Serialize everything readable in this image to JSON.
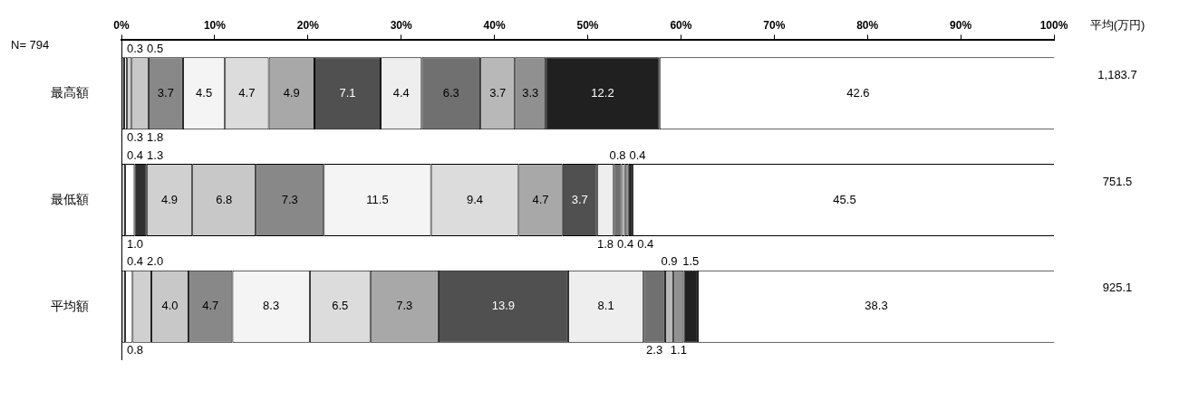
{
  "chart_data": {
    "type": "bar",
    "orientation": "horizontal",
    "stacked": true,
    "legend": false,
    "grid": false,
    "categories": [
      "最高額",
      "最低額",
      "平均額"
    ],
    "xlim": [
      0,
      100
    ],
    "xticks": [
      {
        "value": 0,
        "label": "0%"
      },
      {
        "value": 10,
        "label": "10%"
      },
      {
        "value": 20,
        "label": "20%"
      },
      {
        "value": 30,
        "label": "30%"
      },
      {
        "value": 40,
        "label": "40%"
      },
      {
        "value": 50,
        "label": "50%"
      },
      {
        "value": 60,
        "label": "60%"
      },
      {
        "value": 70,
        "label": "70%"
      },
      {
        "value": 80,
        "label": "80%"
      },
      {
        "value": 90,
        "label": "90%"
      },
      {
        "value": 100,
        "label": "100%"
      }
    ],
    "annotations": [
      "N= 794",
      "平均(万円)",
      "1,183.7",
      "751.5",
      "925.1"
    ],
    "series": [
      {
        "color": "#e8e8e8",
        "values": [
          0.3,
          0.4,
          0.4
        ],
        "value_labels": [
          "0.3",
          "0.4",
          "0.4"
        ]
      },
      {
        "color": "#ffffff",
        "values": [
          0.3,
          1.0,
          0.8
        ],
        "value_labels": [
          "0.3",
          "1.0",
          "0.8"
        ]
      },
      {
        "color": "#303030",
        "values": [
          null,
          1.3,
          null
        ],
        "value_labels": [
          null,
          "1.3",
          null
        ]
      },
      {
        "color": "#d0d0d0",
        "values": [
          0.5,
          4.9,
          2.0
        ],
        "value_labels": [
          "0.5",
          "4.9",
          "2.0"
        ]
      },
      {
        "color": "#c8c8c8",
        "values": [
          1.8,
          6.8,
          4.0
        ],
        "value_labels": [
          "1.8",
          "6.8",
          "4.0"
        ]
      },
      {
        "color": "#888888",
        "values": [
          3.7,
          7.3,
          4.7
        ],
        "value_labels": [
          "3.7",
          "7.3",
          "4.7"
        ]
      },
      {
        "color": "#f4f4f4",
        "values": [
          4.5,
          11.5,
          8.3
        ],
        "value_labels": [
          "4.5",
          "11.5",
          "8.3"
        ]
      },
      {
        "color": "#dcdcdc",
        "values": [
          4.7,
          9.4,
          6.5
        ],
        "value_labels": [
          "4.7",
          "9.4",
          "6.5"
        ]
      },
      {
        "color": "#a8a8a8",
        "values": [
          4.9,
          4.7,
          7.3
        ],
        "value_labels": [
          "4.9",
          "4.7",
          "7.3"
        ]
      },
      {
        "color": "#505050",
        "values": [
          7.1,
          3.7,
          13.9
        ],
        "value_labels": [
          "7.1",
          "3.7",
          "13.9"
        ]
      },
      {
        "color": "#eeeeee",
        "values": [
          4.4,
          1.8,
          8.1
        ],
        "value_labels": [
          "4.4",
          "1.8",
          "8.1"
        ]
      },
      {
        "color": "#707070",
        "values": [
          6.3,
          0.8,
          2.3
        ],
        "value_labels": [
          "6.3",
          "0.8",
          "2.3"
        ]
      },
      {
        "color": "#b8b8b8",
        "values": [
          3.7,
          0.4,
          0.9
        ],
        "value_labels": [
          "3.7",
          "0.4",
          "0.9"
        ]
      },
      {
        "color": "#909090",
        "values": [
          3.3,
          0.4,
          1.1
        ],
        "value_labels": [
          "3.3",
          "0.4",
          "1.1"
        ]
      },
      {
        "color": "#202020",
        "values": [
          12.2,
          0.4,
          1.5
        ],
        "value_labels": [
          "12.2",
          "0.4",
          "1.5"
        ]
      },
      {
        "color": "#ffffff",
        "values": [
          42.6,
          45.5,
          38.3
        ],
        "value_labels": [
          "42.6",
          "45.5",
          "38.3"
        ]
      }
    ]
  }
}
